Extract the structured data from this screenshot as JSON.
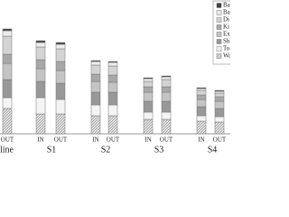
{
  "chart_data": {
    "type": "stacked-bar",
    "groups": [
      {
        "name": "line",
        "categories": [
          "OUT"
        ]
      },
      {
        "name": "S1",
        "categories": [
          "IN",
          "OUT"
        ]
      },
      {
        "name": "S2",
        "categories": [
          "IN",
          "OUT"
        ]
      },
      {
        "name": "S3",
        "categories": [
          "IN",
          "OUT"
        ]
      },
      {
        "name": "S4",
        "categories": [
          "IN",
          "OUT"
        ]
      }
    ],
    "series": [
      {
        "name": "Ba",
        "color": "#404040",
        "values": [
          2,
          2,
          2,
          1,
          1,
          1,
          1,
          1,
          1
        ]
      },
      {
        "name": "Ba",
        "color": "#ececec",
        "values": [
          6,
          5,
          5,
          4,
          4,
          3,
          3,
          2,
          2
        ]
      },
      {
        "name": "Di",
        "color": "#d4d4d4",
        "values": [
          20,
          14,
          14,
          10,
          10,
          6,
          8,
          5,
          4
        ]
      },
      {
        "name": "Ki",
        "color": "#a8a8a8",
        "values": [
          10,
          10,
          10,
          8,
          8,
          6,
          6,
          5,
          5
        ]
      },
      {
        "name": "Ex",
        "color": "#c4c4c4",
        "values": [
          18,
          14,
          14,
          12,
          11,
          10,
          10,
          8,
          8
        ]
      },
      {
        "name": "Sh",
        "color": "#989898",
        "values": [
          20,
          18,
          18,
          14,
          14,
          12,
          12,
          10,
          9
        ]
      },
      {
        "name": "To",
        "color": "#f4f4f4",
        "values": [
          12,
          18,
          16,
          12,
          12,
          8,
          8,
          6,
          6
        ]
      },
      {
        "name": "Wa",
        "color": "#dcdcdc",
        "values": [
          28,
          22,
          22,
          20,
          20,
          16,
          16,
          14,
          13
        ]
      }
    ],
    "ylim": [
      0,
      130
    ]
  }
}
